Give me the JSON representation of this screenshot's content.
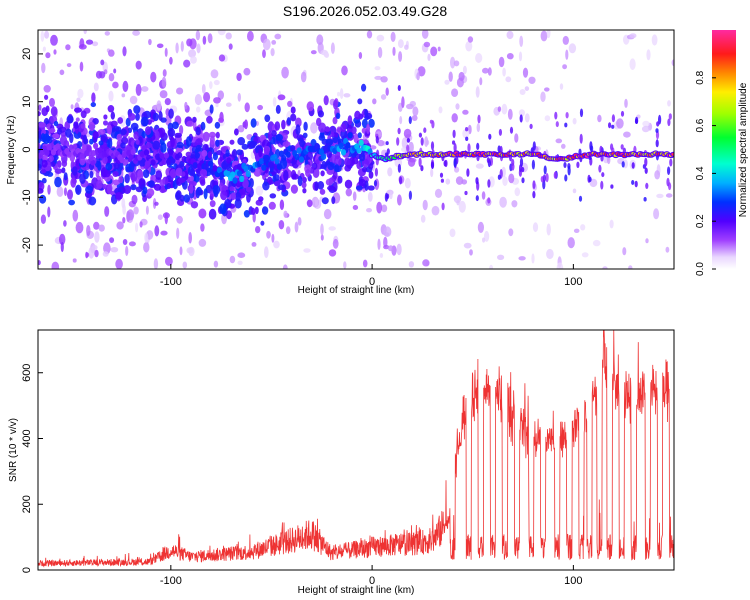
{
  "title": "S196.2026.052.03.49.G28",
  "chart_data": [
    {
      "type": "heatmap",
      "name": "spectrogram",
      "xlabel": "Height of straight line (km)",
      "ylabel": "Frequency (Hz)",
      "xlim": [
        -166,
        150
      ],
      "ylim": [
        -25,
        25
      ],
      "x_ticks": [
        -100,
        0,
        100
      ],
      "y_ticks": [
        -20,
        -10,
        0,
        10,
        20
      ],
      "colorbar": {
        "label": "Normalized spectral amplitude",
        "range": [
          0,
          1
        ],
        "ticks": [
          0.0,
          0.2,
          0.4,
          0.6,
          0.8
        ]
      },
      "ridge": {
        "x": [
          -166,
          -120,
          -80,
          -70,
          -50,
          -30,
          -10,
          0,
          5,
          20,
          50,
          80,
          90,
          110,
          130,
          150
        ],
        "frequency": [
          0,
          -1,
          -3,
          -6,
          -2,
          0,
          1,
          -1,
          -2,
          -1,
          -1,
          -1,
          -2,
          -1,
          -1,
          -1
        ],
        "amplitude": [
          0.15,
          0.18,
          0.25,
          0.35,
          0.3,
          0.3,
          0.35,
          0.45,
          0.5,
          0.85,
          0.9,
          0.85,
          0.9,
          0.95,
          0.9,
          0.9
        ]
      }
    },
    {
      "type": "line",
      "name": "snr",
      "xlabel": "Height of straight line (km)",
      "ylabel": "SNR (10 * v/v)",
      "xlim": [
        -166,
        150
      ],
      "ylim": [
        0,
        730
      ],
      "x_ticks": [
        -100,
        0,
        100
      ],
      "y_ticks": [
        0,
        200,
        400,
        600
      ],
      "color": "#ee3333",
      "envelope": {
        "x": [
          -166,
          -110,
          -100,
          -90,
          -60,
          -40,
          -30,
          -20,
          0,
          20,
          30,
          38,
          45,
          50,
          60,
          70,
          80,
          90,
          100,
          110,
          115,
          120,
          130,
          140,
          150
        ],
        "y": [
          20,
          25,
          60,
          40,
          55,
          90,
          110,
          50,
          70,
          80,
          90,
          150,
          460,
          540,
          550,
          470,
          400,
          390,
          430,
          520,
          640,
          570,
          540,
          540,
          560
        ]
      },
      "dips": [
        40,
        48,
        54,
        60,
        66,
        72,
        79,
        85,
        92,
        98,
        104,
        108,
        113,
        118,
        124,
        130,
        137,
        143,
        149
      ]
    }
  ]
}
